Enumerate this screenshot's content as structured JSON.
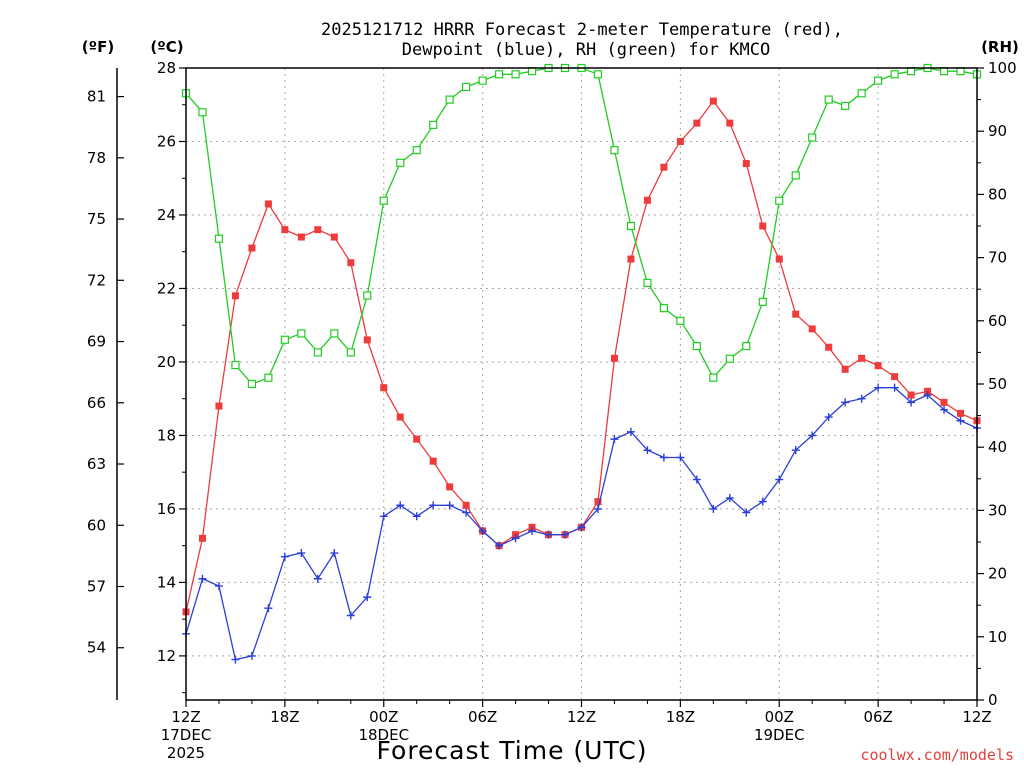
{
  "chart_data": {
    "type": "line",
    "title_line1": "2025121712 HRRR Forecast 2-meter Temperature (red),",
    "title_line2": "Dewpoint (blue), RH (green) for KMCO",
    "xlabel": "Forecast Time (UTC)",
    "credit": "coolwx.com/models",
    "units": {
      "far": "(ºF)",
      "cel": "(ºC)",
      "rh": "(RH)"
    },
    "x": [
      0,
      1,
      2,
      3,
      4,
      5,
      6,
      7,
      8,
      9,
      10,
      11,
      12,
      13,
      14,
      15,
      16,
      17,
      18,
      19,
      20,
      21,
      22,
      23,
      24,
      25,
      26,
      27,
      28,
      29,
      30,
      31,
      32,
      33,
      34,
      35,
      36,
      37,
      38,
      39,
      40,
      41,
      42,
      43,
      44,
      45,
      46,
      47,
      48
    ],
    "xlim": [
      0,
      48
    ],
    "x_ticks": [
      {
        "x": 0,
        "lines": [
          "12Z",
          "17DEC",
          "2025"
        ]
      },
      {
        "x": 6,
        "lines": [
          "18Z"
        ]
      },
      {
        "x": 12,
        "lines": [
          "00Z",
          "18DEC"
        ]
      },
      {
        "x": 18,
        "lines": [
          "06Z"
        ]
      },
      {
        "x": 24,
        "lines": [
          "12Z"
        ]
      },
      {
        "x": 30,
        "lines": [
          "18Z"
        ]
      },
      {
        "x": 36,
        "lines": [
          "00Z",
          "19DEC"
        ]
      },
      {
        "x": 42,
        "lines": [
          "06Z"
        ]
      },
      {
        "x": 48,
        "lines": [
          "12Z"
        ]
      }
    ],
    "ylim_c": [
      10.8,
      28
    ],
    "y_ticks_c": [
      12,
      14,
      16,
      18,
      20,
      22,
      24,
      26,
      28
    ],
    "y_ticks_f": [
      54,
      57,
      60,
      63,
      66,
      69,
      72,
      75,
      78,
      81
    ],
    "ylim_rh": [
      0,
      100
    ],
    "y_ticks_rh": [
      0,
      10,
      20,
      30,
      40,
      50,
      60,
      70,
      80,
      90,
      100
    ],
    "grid": true,
    "series": [
      {
        "name": "Temperature",
        "axis": "c",
        "color": "#ee3b3b",
        "marker": "filled-square",
        "values": [
          13.2,
          15.2,
          18.8,
          21.8,
          23.1,
          24.3,
          23.6,
          23.4,
          23.6,
          23.4,
          22.7,
          20.6,
          19.3,
          18.5,
          17.9,
          17.3,
          16.6,
          16.1,
          15.4,
          15.0,
          15.3,
          15.5,
          15.3,
          15.3,
          15.5,
          16.2,
          20.1,
          22.8,
          24.4,
          25.3,
          26.0,
          26.5,
          27.1,
          26.5,
          25.4,
          23.7,
          22.8,
          21.3,
          20.9,
          20.4,
          19.8,
          20.1,
          19.9,
          19.6,
          19.1,
          19.2,
          18.9,
          18.6,
          18.4
        ]
      },
      {
        "name": "Dewpoint",
        "axis": "c",
        "color": "#2b3fd8",
        "marker": "plus",
        "values": [
          12.6,
          14.1,
          13.9,
          11.9,
          12.0,
          13.3,
          14.7,
          14.8,
          14.1,
          14.8,
          13.1,
          13.6,
          15.8,
          16.1,
          15.8,
          16.1,
          16.1,
          15.9,
          15.4,
          15.0,
          15.2,
          15.4,
          15.3,
          15.3,
          15.5,
          16.0,
          17.9,
          18.1,
          17.6,
          17.4,
          17.4,
          16.8,
          16.0,
          16.3,
          15.9,
          16.2,
          16.8,
          17.6,
          18.0,
          18.5,
          18.9,
          19.0,
          19.3,
          19.3,
          18.9,
          19.1,
          18.7,
          18.4,
          18.2
        ]
      },
      {
        "name": "RH",
        "axis": "rh",
        "color": "#22cc22",
        "marker": "open-square",
        "values": [
          96,
          93,
          73,
          53,
          50,
          51,
          57,
          58,
          55,
          58,
          55,
          64,
          79,
          85,
          87,
          91,
          95,
          97,
          98,
          99,
          99,
          99.5,
          100,
          100,
          100,
          99,
          87,
          75,
          66,
          62,
          60,
          56,
          51,
          54,
          56,
          63,
          79,
          83,
          89,
          95,
          94,
          96,
          98,
          99,
          99.5,
          100,
          99.5,
          99.5,
          99
        ]
      }
    ]
  }
}
